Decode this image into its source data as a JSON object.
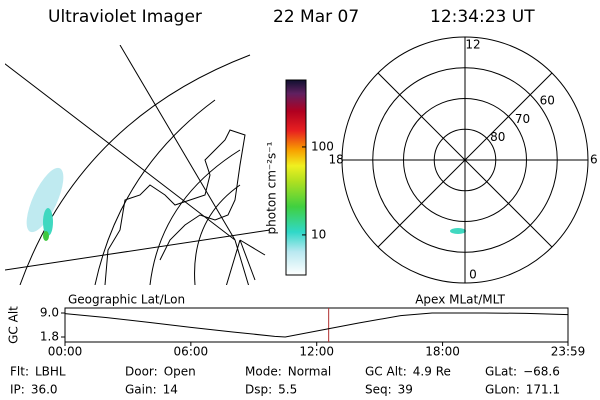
{
  "header": {
    "title": "Ultraviolet Imager",
    "date": "22 Mar 07",
    "time": "12:34:23 UT"
  },
  "colorbar": {
    "label": "photon cm⁻²s⁻¹",
    "log": true,
    "lim": [
      3.5,
      577
    ],
    "ticks": [
      {
        "value": 10,
        "label": "10"
      },
      {
        "value": 100,
        "label": "100"
      }
    ]
  },
  "polar_panel": {
    "rlim": [
      50,
      90
    ],
    "lat_rings": [
      {
        "value": 60,
        "label": "60"
      },
      {
        "value": 70,
        "label": "70"
      },
      {
        "value": 80,
        "label": "80"
      }
    ],
    "mlt_ticks": [
      {
        "value": 12,
        "label": "12"
      },
      {
        "value": 18,
        "label": "18"
      },
      {
        "value": 6,
        "label": "6"
      },
      {
        "value": 0,
        "label": "0"
      }
    ]
  },
  "timeline": {
    "ylabel": "GC Alt",
    "left_label": "Geographic Lat/Lon",
    "right_label": "Apex MLat/MLT",
    "xlim": [
      0,
      23.98
    ],
    "ylim": [
      1.8,
      9.0
    ],
    "xticks": [
      {
        "value": 0,
        "label": "00:00"
      },
      {
        "value": 6,
        "label": "06:00"
      },
      {
        "value": 12,
        "label": "12:00"
      },
      {
        "value": 18,
        "label": "18:00"
      },
      {
        "value": 23.98,
        "label": "23:59"
      }
    ],
    "yticks": [
      {
        "value": 9.0,
        "label": "9.0"
      },
      {
        "value": 1.8,
        "label": "1.8"
      }
    ],
    "x": [
      0,
      2,
      4,
      6,
      8,
      10,
      10.5,
      12,
      14,
      16,
      17.5,
      20,
      22,
      23.98
    ],
    "values": [
      8.8,
      7.6,
      6.2,
      4.7,
      3.3,
      2.0,
      1.8,
      3.6,
      6.0,
      8.2,
      9.0,
      9.0,
      8.9,
      8.5
    ],
    "current_time": 12.57
  },
  "status": [
    [
      {
        "label": "Flt:",
        "value": "LBHL"
      },
      {
        "label": "Door:",
        "value": "Open"
      },
      {
        "label": "Mode:",
        "value": "Normal"
      },
      {
        "label": "GC Alt:",
        "value": "4.9 Re"
      },
      {
        "label": "GLat:",
        "value": "−68.6"
      }
    ],
    [
      {
        "label": "IP:",
        "value": "36.0"
      },
      {
        "label": "Gain:",
        "value": "14"
      },
      {
        "label": "Dsp:",
        "value": "5.5"
      },
      {
        "label": "Seq:",
        "value": "39"
      },
      {
        "label": "GLon:",
        "value": "171.1"
      }
    ]
  ]
}
